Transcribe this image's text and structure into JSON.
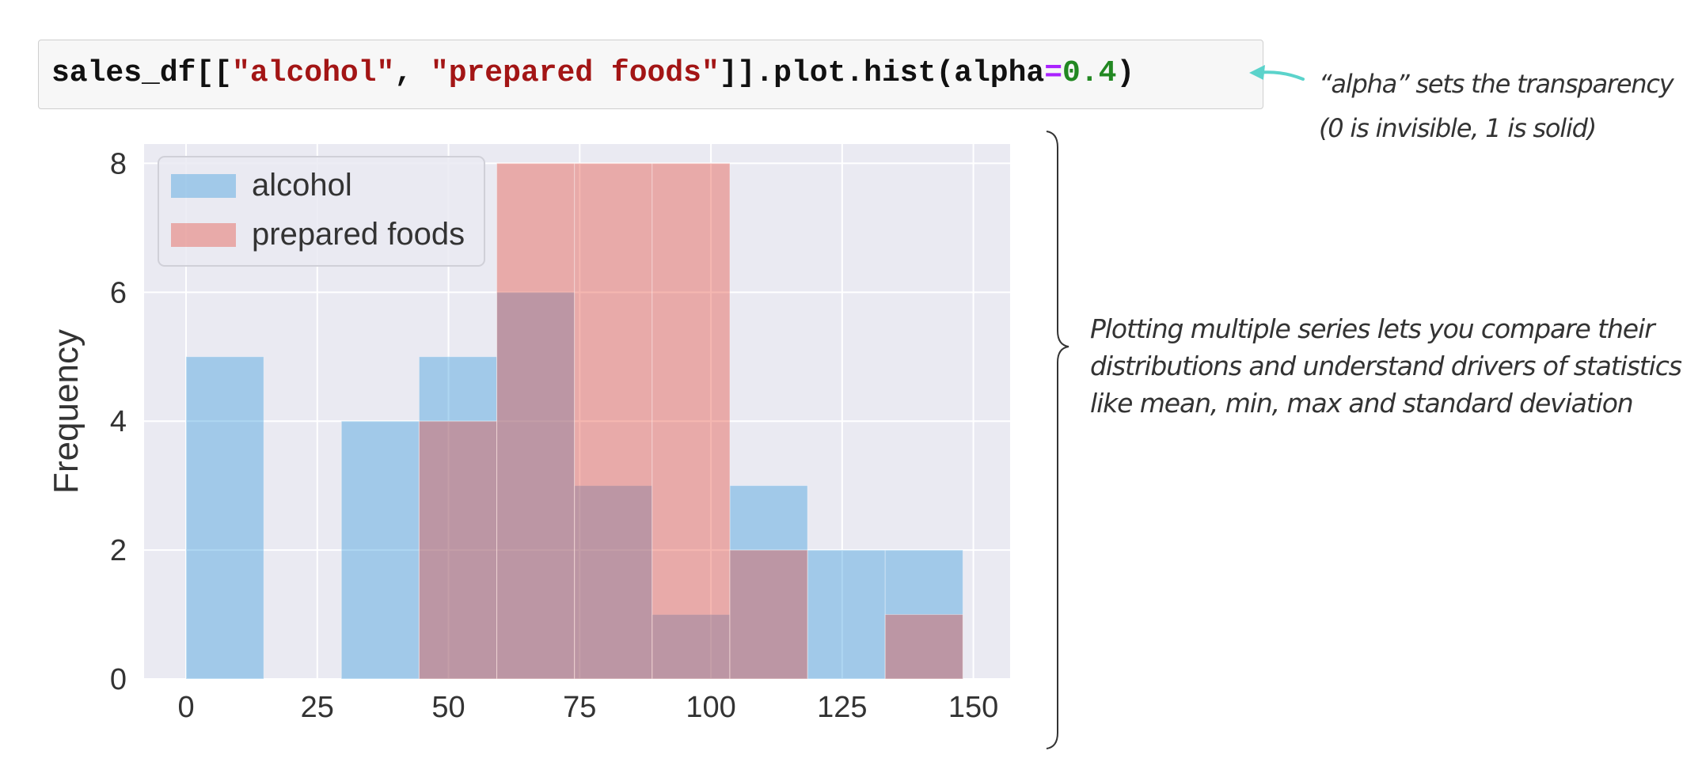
{
  "code": {
    "variable": "sales_df",
    "open": "[[",
    "column_1": "\"alcohol\"",
    "separator": ", ",
    "column_2": "\"prepared foods\"",
    "call": "]].plot.hist(",
    "param": "alpha",
    "equals": "=",
    "value": "0.4",
    "close": ")"
  },
  "annotations": {
    "alpha_note": [
      "“alpha” sets the transparency",
      "(0 is invisible, 1 is solid)"
    ],
    "compare_note": [
      "Plotting multiple series lets you compare their",
      "distributions and understand drivers of statistics",
      "like mean, min, max and standard deviation"
    ],
    "arrow_color": "#5bd3cb",
    "brace_color": "#333333"
  },
  "colors": {
    "code_string": "#a31515",
    "code_operator": "#aa22ff",
    "code_number": "#228822",
    "plot_background": "#eaeaf2",
    "grid": "#ffffff"
  },
  "chart_data": {
    "type": "bar",
    "ylabel": "Frequency",
    "xlim": [
      -8,
      157
    ],
    "ylim": [
      0,
      8.3
    ],
    "x_ticks": [
      0,
      25,
      50,
      75,
      100,
      125,
      150
    ],
    "y_ticks": [
      0,
      2,
      4,
      6,
      8
    ],
    "grid": true,
    "legend_position": "top-left",
    "series": [
      {
        "name": "alcohol",
        "color": "#3498db",
        "opacity": 0.4,
        "bins": [
          [
            0,
            14.8,
            5
          ],
          [
            29.6,
            44.4,
            4
          ],
          [
            44.4,
            59.2,
            5
          ],
          [
            59.2,
            74,
            6
          ],
          [
            74,
            88.8,
            3
          ],
          [
            88.8,
            103.6,
            1
          ],
          [
            103.6,
            118.4,
            3
          ],
          [
            118.4,
            133.2,
            2
          ],
          [
            133.2,
            148,
            2
          ]
        ]
      },
      {
        "name": "prepared foods",
        "color": "#e74c3c",
        "opacity": 0.4,
        "bins": [
          [
            44.4,
            59.2,
            4
          ],
          [
            59.2,
            74,
            8
          ],
          [
            74,
            88.8,
            8
          ],
          [
            88.8,
            103.6,
            8
          ],
          [
            103.6,
            118.4,
            2
          ],
          [
            133.2,
            148,
            1
          ]
        ]
      }
    ]
  }
}
